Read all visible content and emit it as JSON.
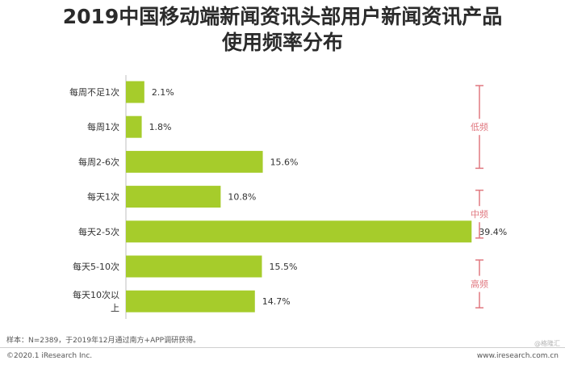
{
  "title_line1": "2019中国移动端新闻资讯头部用户新闻资讯产品",
  "title_line2": "使用频率分布",
  "chart_data": {
    "type": "bar",
    "orientation": "horizontal",
    "categories": [
      "每周不足1次",
      "每周1次",
      "每周2-6次",
      "每天1次",
      "每天2-5次",
      "每天5-10次",
      "每天10次以上"
    ],
    "category_lines": [
      [
        "每周不足1次"
      ],
      [
        "每周1次"
      ],
      [
        "每周2-6次"
      ],
      [
        "每天1次"
      ],
      [
        "每天2-5次"
      ],
      [
        "每天5-10次"
      ],
      [
        "每天10次以",
        "上"
      ]
    ],
    "values": [
      2.1,
      1.8,
      15.6,
      10.8,
      39.4,
      15.5,
      14.7
    ],
    "value_labels": [
      "2.1%",
      "1.8%",
      "15.6%",
      "10.8%",
      "39.4%",
      "15.5%",
      "14.7%"
    ],
    "bar_color": "#a6cc2b",
    "xlim": [
      0,
      40
    ],
    "groups": [
      {
        "label": "低频",
        "from": 0,
        "to": 2
      },
      {
        "label": "中频",
        "from": 3,
        "to": 4
      },
      {
        "label": "高频",
        "from": 5,
        "to": 6
      }
    ],
    "group_color": "#e07880",
    "grid": false
  },
  "footer": {
    "note": "样本：N=2389，于2019年12月通过南方+APP调研获得。",
    "copyright": "©2020.1 iResearch Inc.",
    "url": "www.iresearch.com.cn",
    "watermark": "@格隆汇"
  }
}
